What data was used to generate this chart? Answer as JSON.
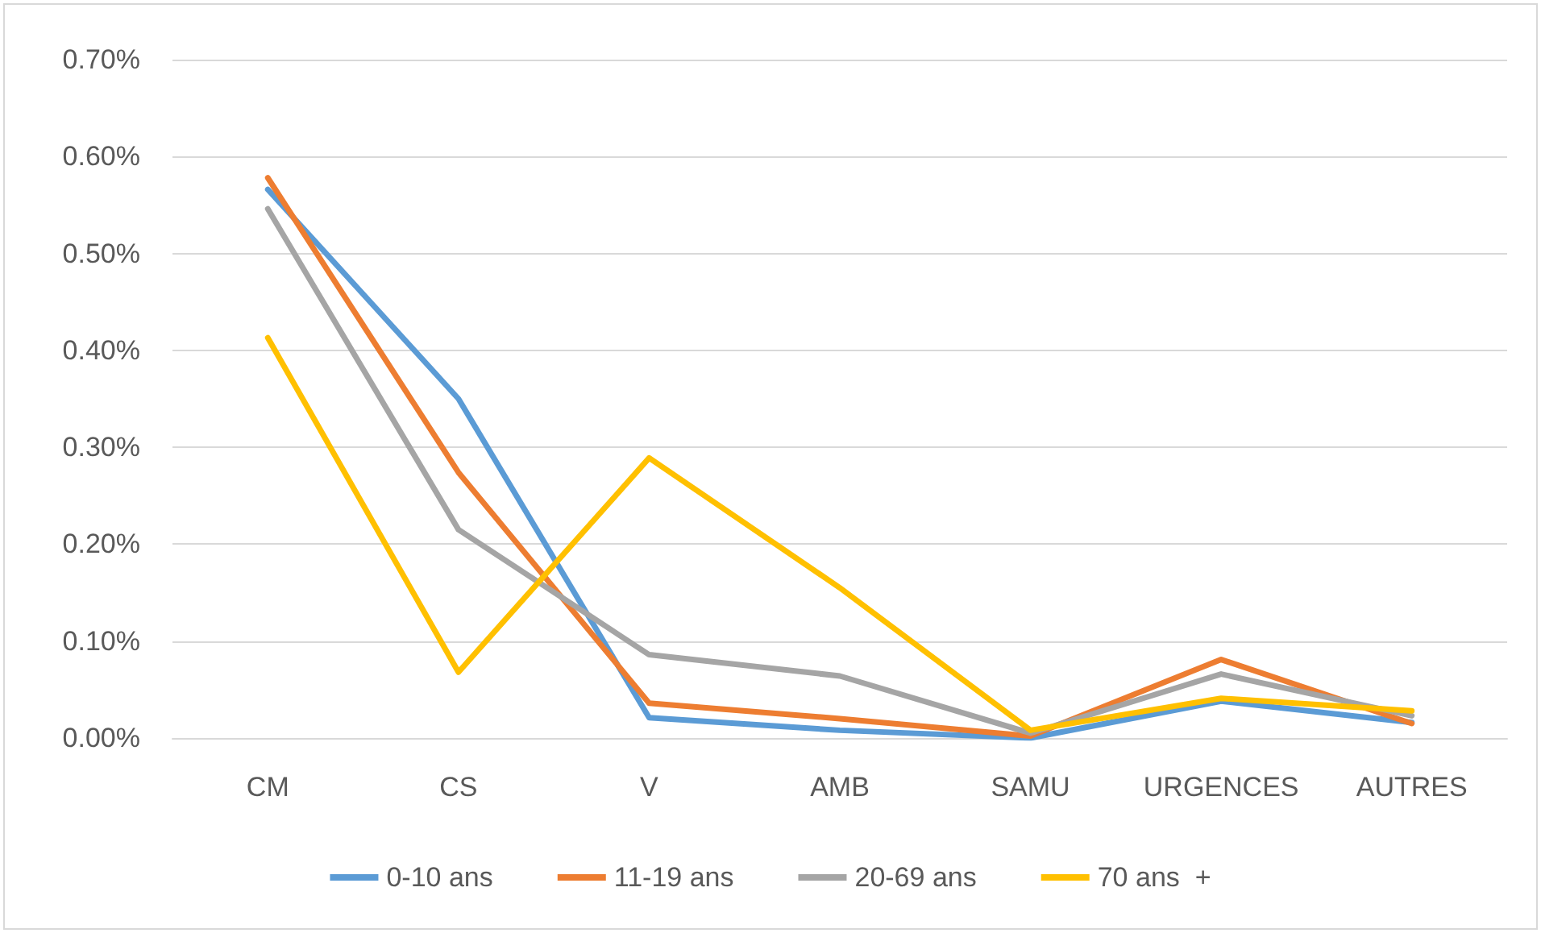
{
  "chart_data": {
    "type": "line",
    "categories": [
      "CM",
      "CS",
      "V",
      "AMB",
      "SAMU",
      "URGENCES",
      "AUTRES"
    ],
    "series": [
      {
        "name": "0-10 ans",
        "color": "#5b9bd5",
        "values": [
          0.566,
          0.35,
          0.021,
          0.008,
          0.0,
          0.038,
          0.016
        ]
      },
      {
        "name": "11-19 ans",
        "color": "#ed7d31",
        "values": [
          0.578,
          0.274,
          0.036,
          0.02,
          0.002,
          0.081,
          0.015
        ]
      },
      {
        "name": "20-69 ans",
        "color": "#a5a5a5",
        "values": [
          0.546,
          0.215,
          0.086,
          0.064,
          0.005,
          0.066,
          0.023
        ]
      },
      {
        "name": "70 ans  +",
        "color": "#ffc000",
        "values": [
          0.413,
          0.068,
          0.289,
          0.155,
          0.008,
          0.041,
          0.028
        ]
      }
    ],
    "ylim": [
      0,
      0.7
    ],
    "yticks": [
      {
        "value": 0,
        "label": "0.00%"
      },
      {
        "value": 0.1,
        "label": "0.10%"
      },
      {
        "value": 0.2,
        "label": "0.20%"
      },
      {
        "value": 0.3,
        "label": "0.30%"
      },
      {
        "value": 0.4,
        "label": "0.40%"
      },
      {
        "value": 0.5,
        "label": "0.50%"
      },
      {
        "value": 0.6,
        "label": "0.60%"
      },
      {
        "value": 0.7,
        "label": "0.70%"
      }
    ],
    "grid": "y",
    "legend": "bottom",
    "marker": "none",
    "line_style": "solid"
  }
}
